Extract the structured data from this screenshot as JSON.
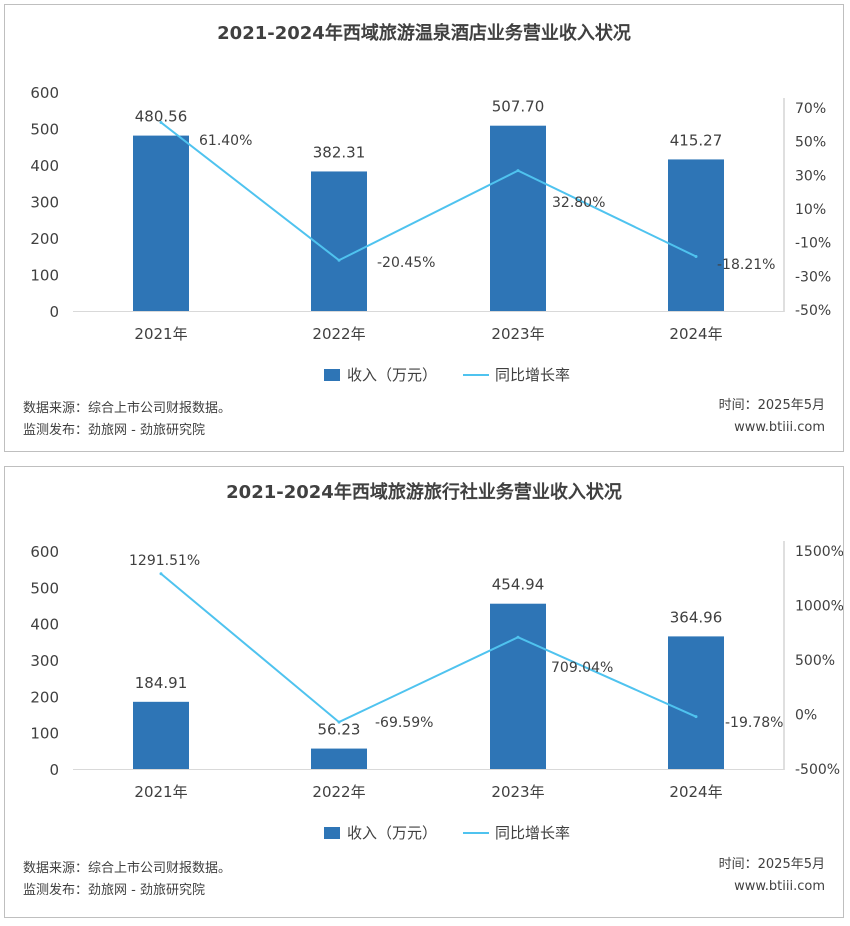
{
  "charts": [
    {
      "source": "数据来源：综合上市公司财报数据。",
      "publisher": "监测发布：劲旅网 - 劲旅研究院",
      "time": "时间：2025年5月",
      "site": "www.btiii.com"
    },
    {
      "source": "数据来源：综合上市公司财报数据。",
      "publisher": "监测发布：劲旅网 - 劲旅研究院",
      "time": "时间：2025年5月",
      "site": "www.btiii.com"
    }
  ],
  "chart_data": [
    {
      "type": "bar",
      "title": "2021-2024年西域旅游温泉酒店业务营业收入状况",
      "categories": [
        "2021年",
        "2022年",
        "2023年",
        "2024年"
      ],
      "series": [
        {
          "name": "收入（万元）",
          "type": "bar",
          "axis": "left",
          "values": [
            480.56,
            382.31,
            507.7,
            415.27
          ],
          "labels": [
            "480.56",
            "382.31",
            "507.70",
            "415.27"
          ]
        },
        {
          "name": "同比增长率",
          "type": "line",
          "axis": "right",
          "values": [
            61.4,
            -20.45,
            32.8,
            -18.21
          ],
          "labels": [
            "61.40%",
            "-20.45%",
            "32.80%",
            "-18.21%"
          ]
        }
      ],
      "left_axis": {
        "ylim": [
          0,
          600
        ],
        "ticks": [
          "0",
          "100",
          "200",
          "300",
          "400",
          "500",
          "600"
        ]
      },
      "right_axis": {
        "ticks": [
          "-50%",
          "-30%",
          "-10%",
          "10%",
          "30%",
          "50%",
          "70%"
        ]
      },
      "legend_position": "bottom",
      "grid": false,
      "colors": {
        "bar": "#2e75b6",
        "line": "#4fc3ef"
      }
    },
    {
      "type": "bar",
      "title": "2021-2024年西域旅游旅行社业务营业收入状况",
      "categories": [
        "2021年",
        "2022年",
        "2023年",
        "2024年"
      ],
      "series": [
        {
          "name": "收入（万元）",
          "type": "bar",
          "axis": "left",
          "values": [
            184.91,
            56.23,
            454.94,
            364.96
          ],
          "labels": [
            "184.91",
            "56.23",
            "454.94",
            "364.96"
          ]
        },
        {
          "name": "同比增长率",
          "type": "line",
          "axis": "right",
          "values": [
            1291.51,
            -69.59,
            709.04,
            -19.78
          ],
          "labels": [
            "1291.51%",
            "-69.59%",
            "709.04%",
            "-19.78%"
          ]
        }
      ],
      "left_axis": {
        "ylim": [
          0,
          600
        ],
        "ticks": [
          "0",
          "100",
          "200",
          "300",
          "400",
          "500",
          "600"
        ]
      },
      "right_axis": {
        "ticks": [
          "-500%",
          "0%",
          "500%",
          "1000%",
          "1500%"
        ]
      },
      "legend_position": "bottom",
      "grid": false,
      "colors": {
        "bar": "#2e75b6",
        "line": "#4fc3ef"
      }
    }
  ]
}
